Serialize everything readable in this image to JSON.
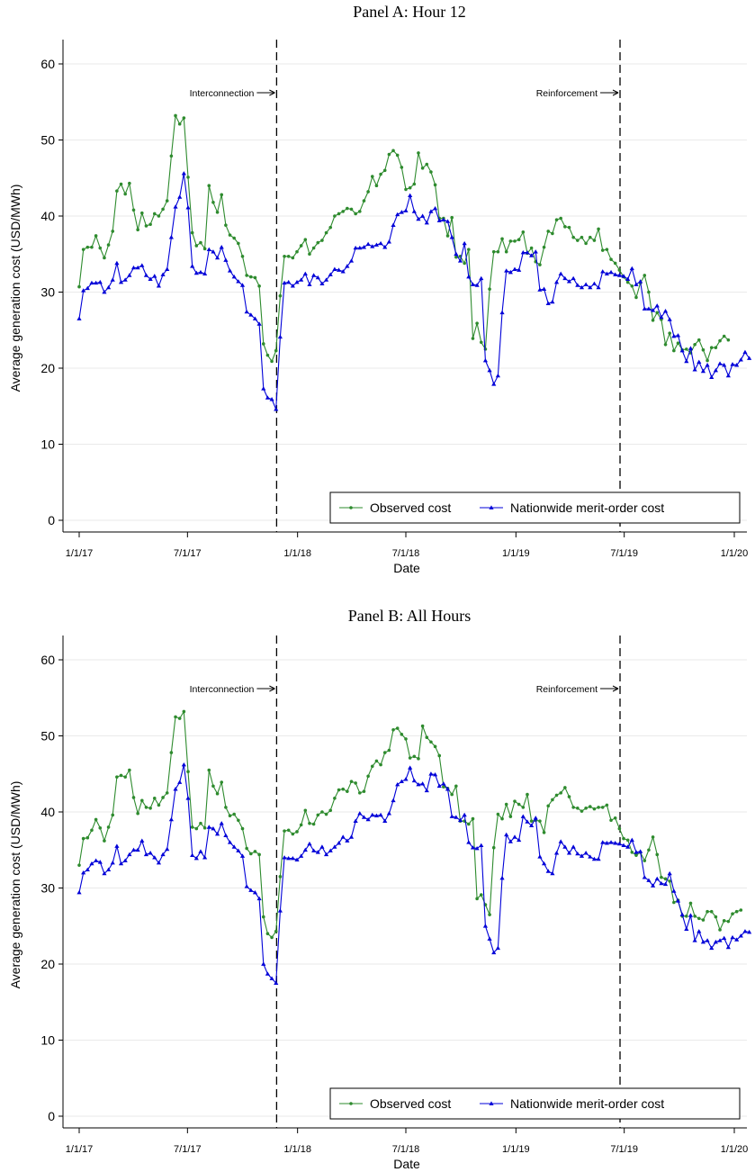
{
  "chart_data": [
    {
      "type": "line",
      "title": "Panel A: Hour 12",
      "xlabel": "Date",
      "ylabel": "Average generation cost (USD/MWh)",
      "ylim": [
        0,
        60
      ],
      "yticks": [
        0,
        10,
        20,
        30,
        40,
        50,
        60
      ],
      "xlim": [
        "2017-01-01",
        "2020-01-01"
      ],
      "xticks": [
        {
          "date": "2017-01-01",
          "label": "1/1/17"
        },
        {
          "date": "2017-07-01",
          "label": "7/1/17"
        },
        {
          "date": "2018-01-01",
          "label": "1/1/18"
        },
        {
          "date": "2018-07-01",
          "label": "7/1/18"
        },
        {
          "date": "2019-01-01",
          "label": "1/1/19"
        },
        {
          "date": "2019-07-01",
          "label": "7/1/19"
        },
        {
          "date": "2020-01-01",
          "label": "1/1/20"
        }
      ],
      "grid": true,
      "legend_position": "bottom-right",
      "annotations": [
        {
          "label": "Interconnection",
          "date": "2017-11-27"
        },
        {
          "label": "Reinforcement",
          "date": "2019-06-24"
        }
      ],
      "x_start": "2017-01-01",
      "x_step_days": 7,
      "series": [
        {
          "name": "Observed cost",
          "color": "#2e8b2e",
          "marker": "circle",
          "values": [
            30.7,
            35.6,
            35.9,
            35.9,
            37.4,
            35.8,
            34.5,
            36.2,
            38.0,
            43.3,
            44.2,
            42.9,
            44.3,
            40.8,
            38.2,
            40.4,
            38.7,
            38.9,
            40.3,
            40.0,
            40.9,
            42.0,
            47.9,
            53.2,
            52.1,
            52.9,
            45.1,
            37.8,
            36.1,
            36.5,
            35.7,
            44.0,
            41.8,
            40.5,
            42.8,
            38.8,
            37.5,
            37.1,
            36.4,
            34.7,
            32.2,
            32.0,
            31.9,
            30.8,
            23.2,
            21.7,
            20.9,
            22.3,
            29.5,
            34.7,
            34.7,
            34.5,
            35.3,
            36.1,
            36.9,
            35.0,
            35.8,
            36.5,
            36.8,
            37.8,
            38.5,
            40.0,
            40.3,
            40.6,
            41.0,
            40.9,
            40.3,
            40.6,
            42.0,
            43.2,
            45.2,
            44.0,
            45.5,
            46.0,
            48.1,
            48.6,
            48.0,
            46.4,
            43.5,
            43.7,
            44.2,
            48.3,
            46.3,
            46.8,
            45.8,
            44.1,
            39.7,
            39.7,
            37.4,
            39.8,
            34.6,
            34.7,
            33.8,
            35.6,
            23.9,
            25.9,
            23.4,
            22.5,
            30.4,
            35.3,
            35.3,
            37.0,
            35.3,
            36.7,
            36.7,
            36.9,
            37.9,
            35.1,
            35.8,
            34.0,
            33.6,
            35.9,
            38.0,
            37.7,
            39.5,
            39.7,
            38.6,
            38.5,
            37.2,
            36.8,
            37.2,
            36.4,
            37.2,
            36.8,
            38.3,
            35.5,
            35.6,
            34.3,
            33.8,
            32.9,
            32.0,
            31.3,
            30.8,
            29.3,
            31.2,
            32.2,
            30.0,
            26.3,
            27.3,
            26.4,
            23.1,
            24.6,
            22.3,
            23.3,
            22.4,
            22.5,
            22.0,
            23.1,
            23.7,
            22.4,
            21.0,
            22.7,
            22.7,
            23.6,
            24.2,
            23.7
          ]
        },
        {
          "name": "Nationwide merit-order cost",
          "color": "#0000d8",
          "marker": "triangle",
          "values": [
            26.5,
            30.2,
            30.5,
            31.2,
            31.2,
            31.3,
            30.0,
            30.6,
            31.6,
            33.8,
            31.3,
            31.6,
            32.2,
            33.2,
            33.2,
            33.5,
            32.2,
            31.7,
            32.1,
            30.8,
            32.3,
            33.0,
            37.2,
            41.2,
            42.5,
            45.6,
            41.1,
            33.4,
            32.5,
            32.6,
            32.4,
            35.6,
            35.3,
            34.5,
            35.9,
            34.2,
            32.8,
            32.0,
            31.4,
            30.9,
            27.4,
            27.0,
            26.5,
            25.8,
            17.3,
            16.1,
            15.9,
            14.6,
            24.1,
            31.2,
            31.3,
            30.8,
            31.3,
            31.6,
            32.4,
            31.0,
            32.2,
            31.9,
            31.1,
            31.6,
            32.3,
            33.0,
            32.9,
            32.7,
            33.4,
            34.1,
            35.8,
            35.8,
            35.9,
            36.3,
            36.0,
            36.2,
            36.4,
            35.9,
            36.6,
            38.8,
            40.2,
            40.5,
            40.7,
            42.7,
            40.6,
            39.6,
            40.0,
            39.1,
            40.6,
            41.0,
            39.4,
            39.5,
            39.3,
            37.2,
            35.0,
            34.1,
            36.4,
            32.0,
            31.0,
            30.9,
            31.8,
            21.0,
            19.7,
            17.9,
            19.0,
            27.3,
            32.8,
            32.6,
            33.0,
            32.9,
            35.2,
            35.2,
            34.8,
            35.3,
            30.3,
            30.4,
            28.5,
            28.7,
            31.3,
            32.4,
            31.8,
            31.4,
            31.8,
            30.9,
            30.6,
            31.0,
            30.6,
            31.1,
            30.6,
            32.7,
            32.4,
            32.6,
            32.3,
            32.2,
            32.1,
            31.7,
            33.1,
            31.0,
            31.4,
            27.8,
            27.8,
            27.6,
            28.2,
            26.7,
            27.5,
            26.4,
            24.2,
            24.3,
            22.3,
            20.9,
            22.6,
            19.8,
            20.8,
            19.6,
            20.4,
            18.8,
            19.7,
            20.6,
            20.4,
            19.0,
            20.5,
            20.4,
            21.1,
            22.1,
            21.3
          ]
        }
      ]
    },
    {
      "type": "line",
      "title": "Panel B: All Hours",
      "xlabel": "Date",
      "ylabel": "Average generation cost (USD/MWh)",
      "ylim": [
        0,
        60
      ],
      "yticks": [
        0,
        10,
        20,
        30,
        40,
        50,
        60
      ],
      "xlim": [
        "2017-01-01",
        "2020-01-01"
      ],
      "xticks": [
        {
          "date": "2017-01-01",
          "label": "1/1/17"
        },
        {
          "date": "2017-07-01",
          "label": "7/1/17"
        },
        {
          "date": "2018-01-01",
          "label": "1/1/18"
        },
        {
          "date": "2018-07-01",
          "label": "7/1/18"
        },
        {
          "date": "2019-01-01",
          "label": "1/1/19"
        },
        {
          "date": "2019-07-01",
          "label": "7/1/19"
        },
        {
          "date": "2020-01-01",
          "label": "1/1/20"
        }
      ],
      "grid": true,
      "legend_position": "bottom-right",
      "annotations": [
        {
          "label": "Interconnection",
          "date": "2017-11-27"
        },
        {
          "label": "Reinforcement",
          "date": "2019-06-24"
        }
      ],
      "x_start": "2017-01-01",
      "x_step_days": 7,
      "series": [
        {
          "name": "Observed cost",
          "color": "#2e8b2e",
          "marker": "circle",
          "values": [
            33.0,
            36.5,
            36.6,
            37.6,
            39.0,
            37.9,
            36.2,
            38.0,
            39.6,
            44.6,
            44.8,
            44.6,
            45.5,
            41.9,
            39.8,
            41.5,
            40.6,
            40.5,
            41.8,
            40.9,
            41.9,
            42.5,
            47.8,
            52.5,
            52.3,
            53.2,
            45.3,
            38.0,
            37.8,
            38.5,
            37.9,
            45.5,
            43.4,
            42.4,
            43.9,
            40.6,
            39.5,
            39.7,
            38.9,
            37.8,
            35.2,
            34.5,
            34.8,
            34.4,
            26.2,
            24.0,
            23.5,
            24.3,
            31.5,
            37.5,
            37.6,
            37.1,
            37.4,
            38.3,
            40.2,
            38.5,
            38.4,
            39.6,
            40.0,
            39.7,
            40.2,
            41.8,
            42.9,
            43.0,
            42.7,
            44.0,
            43.8,
            42.5,
            42.7,
            44.7,
            46.0,
            46.7,
            46.2,
            47.8,
            48.1,
            50.8,
            51.0,
            50.2,
            49.6,
            47.1,
            47.3,
            47.0,
            51.3,
            49.8,
            49.2,
            48.6,
            47.4,
            43.3,
            43.1,
            42.3,
            43.4,
            38.8,
            38.8,
            38.4,
            39.1,
            28.6,
            29.1,
            27.8,
            26.5,
            35.3,
            39.7,
            39.1,
            41.0,
            39.4,
            41.4,
            41.0,
            40.6,
            42.3,
            38.8,
            38.9,
            38.8,
            37.3,
            40.8,
            41.6,
            42.2,
            42.5,
            43.2,
            42.0,
            40.6,
            40.5,
            40.1,
            40.5,
            40.7,
            40.4,
            40.6,
            40.6,
            40.9,
            38.9,
            39.2,
            37.8,
            36.5,
            36.3,
            34.7,
            34.3,
            34.7,
            33.6,
            35.0,
            36.7,
            34.4,
            31.4,
            31.2,
            30.9,
            28.1,
            28.4,
            26.3,
            26.3,
            28.0,
            26.3,
            26.0,
            25.8,
            26.9,
            26.9,
            26.2,
            24.5,
            25.7,
            25.6,
            26.6,
            26.9,
            27.1
          ]
        },
        {
          "name": "Nationwide merit-order cost",
          "color": "#0000d8",
          "marker": "triangle",
          "values": [
            29.4,
            32.0,
            32.4,
            33.2,
            33.6,
            33.4,
            31.9,
            32.4,
            33.3,
            35.5,
            33.2,
            33.6,
            34.4,
            35.0,
            35.0,
            36.2,
            34.4,
            34.6,
            34.0,
            33.3,
            34.4,
            35.1,
            39.0,
            43.0,
            43.9,
            46.2,
            41.8,
            34.3,
            33.9,
            34.8,
            34.0,
            38.0,
            37.8,
            37.1,
            38.5,
            36.9,
            36.0,
            35.4,
            34.9,
            34.2,
            30.2,
            29.7,
            29.4,
            28.6,
            20.0,
            18.7,
            18.1,
            17.5,
            27.0,
            34.0,
            33.9,
            33.9,
            33.7,
            34.2,
            35.0,
            35.8,
            34.9,
            34.7,
            35.4,
            34.4,
            34.9,
            35.4,
            35.9,
            36.7,
            36.2,
            36.7,
            38.8,
            39.8,
            39.3,
            39.0,
            39.6,
            39.5,
            39.6,
            38.8,
            39.8,
            41.5,
            43.6,
            44.0,
            44.3,
            45.8,
            44.1,
            43.6,
            43.7,
            42.8,
            45.0,
            44.9,
            43.4,
            43.7,
            43.0,
            39.4,
            39.3,
            38.9,
            39.6,
            36.0,
            35.3,
            35.2,
            35.6,
            25.0,
            23.3,
            21.5,
            22.1,
            31.3,
            37.0,
            36.1,
            36.7,
            36.3,
            39.4,
            38.7,
            38.2,
            39.2,
            34.1,
            33.2,
            32.2,
            31.9,
            34.6,
            36.1,
            35.4,
            34.6,
            35.4,
            34.5,
            34.2,
            34.6,
            34.1,
            33.8,
            33.8,
            36.0,
            35.9,
            36.0,
            35.9,
            35.8,
            35.6,
            35.4,
            36.3,
            34.7,
            34.8,
            31.4,
            31.0,
            30.3,
            31.2,
            30.6,
            30.5,
            31.9,
            29.6,
            28.3,
            26.5,
            24.6,
            26.4,
            23.1,
            24.3,
            22.9,
            23.1,
            22.1,
            22.9,
            23.1,
            23.4,
            22.2,
            23.5,
            23.2,
            23.7,
            24.3,
            24.2
          ]
        }
      ]
    }
  ]
}
